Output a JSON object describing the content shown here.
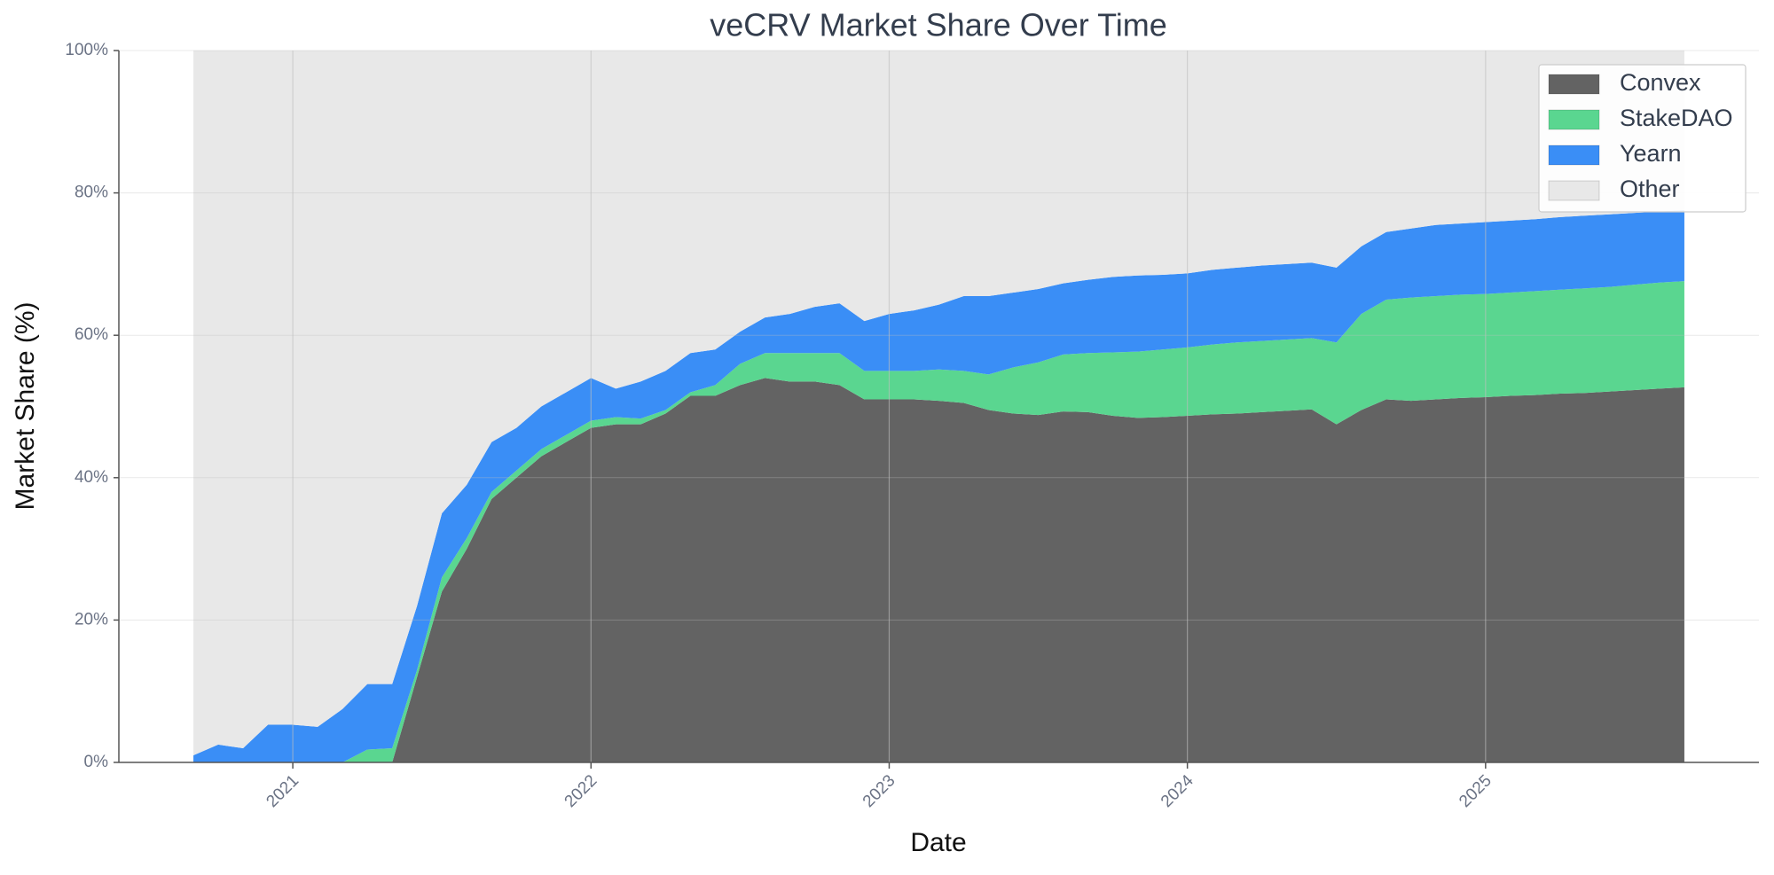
{
  "chart_data": {
    "type": "stacked_area",
    "title": "veCRV Market Share Over Time",
    "x_label": "Date",
    "y_label": "Market Share (%)",
    "x": [
      "2020-09",
      "2020-10",
      "2020-11",
      "2020-12",
      "2021-01",
      "2021-02",
      "2021-03",
      "2021-04",
      "2021-05",
      "2021-06",
      "2021-07",
      "2021-08",
      "2021-09",
      "2021-10",
      "2021-11",
      "2021-12",
      "2022-01",
      "2022-02",
      "2022-03",
      "2022-04",
      "2022-05",
      "2022-06",
      "2022-07",
      "2022-08",
      "2022-09",
      "2022-10",
      "2022-11",
      "2022-12",
      "2023-01",
      "2023-02",
      "2023-03",
      "2023-04",
      "2023-05",
      "2023-06",
      "2023-07",
      "2023-08",
      "2023-09",
      "2023-10",
      "2023-11",
      "2023-12",
      "2024-01",
      "2024-02",
      "2024-03",
      "2024-04",
      "2024-05",
      "2024-06",
      "2024-07",
      "2024-08",
      "2024-09",
      "2024-10",
      "2024-11",
      "2024-12",
      "2025-01",
      "2025-02",
      "2025-03",
      "2025-04",
      "2025-05",
      "2025-06",
      "2025-07",
      "2025-08",
      "2025-09"
    ],
    "series": [
      {
        "name": "Convex",
        "color": "#636363",
        "values": [
          0,
          0,
          0,
          0,
          0,
          0,
          0,
          0,
          0,
          12,
          24,
          30,
          37,
          40,
          43,
          45,
          47,
          47.5,
          47.5,
          49,
          51.5,
          51.5,
          53,
          54,
          53.5,
          53.5,
          53,
          51,
          51,
          51,
          50.8,
          50.5,
          49.5,
          49,
          48.8,
          49.3,
          49.2,
          48.7,
          48.4,
          48.5,
          48.7,
          48.9,
          49,
          49.2,
          49.4,
          49.6,
          47.5,
          49.5,
          51,
          50.8,
          51,
          51.2,
          51.3,
          51.5,
          51.6,
          51.8,
          51.9,
          52.1,
          52.3,
          52.5,
          52.7
        ]
      },
      {
        "name": "StakeDAO",
        "color": "#5ad690",
        "values": [
          0,
          0,
          0,
          0,
          0,
          0,
          0,
          1.8,
          2,
          1,
          2,
          1.5,
          1,
          1,
          1,
          1,
          1,
          1,
          0.8,
          0.5,
          0.5,
          1.5,
          3,
          3.5,
          4,
          4,
          4.5,
          4,
          4,
          4,
          4.4,
          4.5,
          5,
          6.5,
          7.4,
          8,
          8.3,
          8.9,
          9.3,
          9.5,
          9.6,
          9.8,
          10,
          10,
          10,
          10,
          11.5,
          13.5,
          14,
          14.5,
          14.5,
          14.5,
          14.5,
          14.5,
          14.6,
          14.6,
          14.7,
          14.7,
          14.8,
          14.9,
          14.9
        ]
      },
      {
        "name": "Yearn",
        "color": "#3a8ef6",
        "values": [
          1,
          2.5,
          2,
          5.3,
          5.3,
          5,
          7.5,
          9.2,
          9,
          9,
          9,
          7.5,
          7,
          6,
          6,
          6,
          6,
          4,
          5.2,
          5.5,
          5.5,
          5,
          4.5,
          5,
          5.5,
          6.5,
          7,
          7,
          8,
          8.5,
          9.1,
          10.5,
          11,
          10.5,
          10.3,
          10,
          10.3,
          10.6,
          10.7,
          10.5,
          10.4,
          10.5,
          10.5,
          10.6,
          10.6,
          10.6,
          10.5,
          9.5,
          9.5,
          9.7,
          10,
          10,
          10.1,
          10.1,
          10.1,
          10.2,
          10.2,
          10.2,
          10.1,
          10,
          10
        ]
      },
      {
        "name": "Other",
        "color": "#e8e8e8",
        "values": [
          99,
          97.5,
          98,
          94.7,
          94.7,
          95,
          92.5,
          89,
          89,
          78,
          65,
          61,
          55,
          53,
          50,
          48,
          46,
          47.5,
          46.5,
          45,
          42.5,
          42,
          39.5,
          37.5,
          37,
          36,
          35.5,
          38,
          37,
          36.5,
          35.7,
          34.5,
          34.5,
          34,
          33.5,
          32.7,
          32.2,
          31.8,
          31.6,
          31.5,
          31.3,
          30.8,
          30.5,
          30.2,
          30,
          29.8,
          30.5,
          27.5,
          25.5,
          25,
          24.5,
          24.3,
          24.1,
          23.9,
          23.7,
          23.4,
          23.2,
          23,
          22.8,
          22.6,
          22.4
        ]
      }
    ],
    "xlim": [
      "2020-06",
      "2025-12"
    ],
    "xticks": [
      {
        "value": "2021-01",
        "label": "2021"
      },
      {
        "value": "2022-01",
        "label": "2022"
      },
      {
        "value": "2023-01",
        "label": "2023"
      },
      {
        "value": "2024-01",
        "label": "2024"
      },
      {
        "value": "2025-01",
        "label": "2025"
      }
    ],
    "ylim": [
      0,
      100
    ],
    "yticks": [
      {
        "value": 0,
        "label": "0%"
      },
      {
        "value": 20,
        "label": "20%"
      },
      {
        "value": 40,
        "label": "40%"
      },
      {
        "value": 60,
        "label": "60%"
      },
      {
        "value": 80,
        "label": "80%"
      },
      {
        "value": 100,
        "label": "100%"
      }
    ],
    "grid": true,
    "legend": "upper right"
  }
}
